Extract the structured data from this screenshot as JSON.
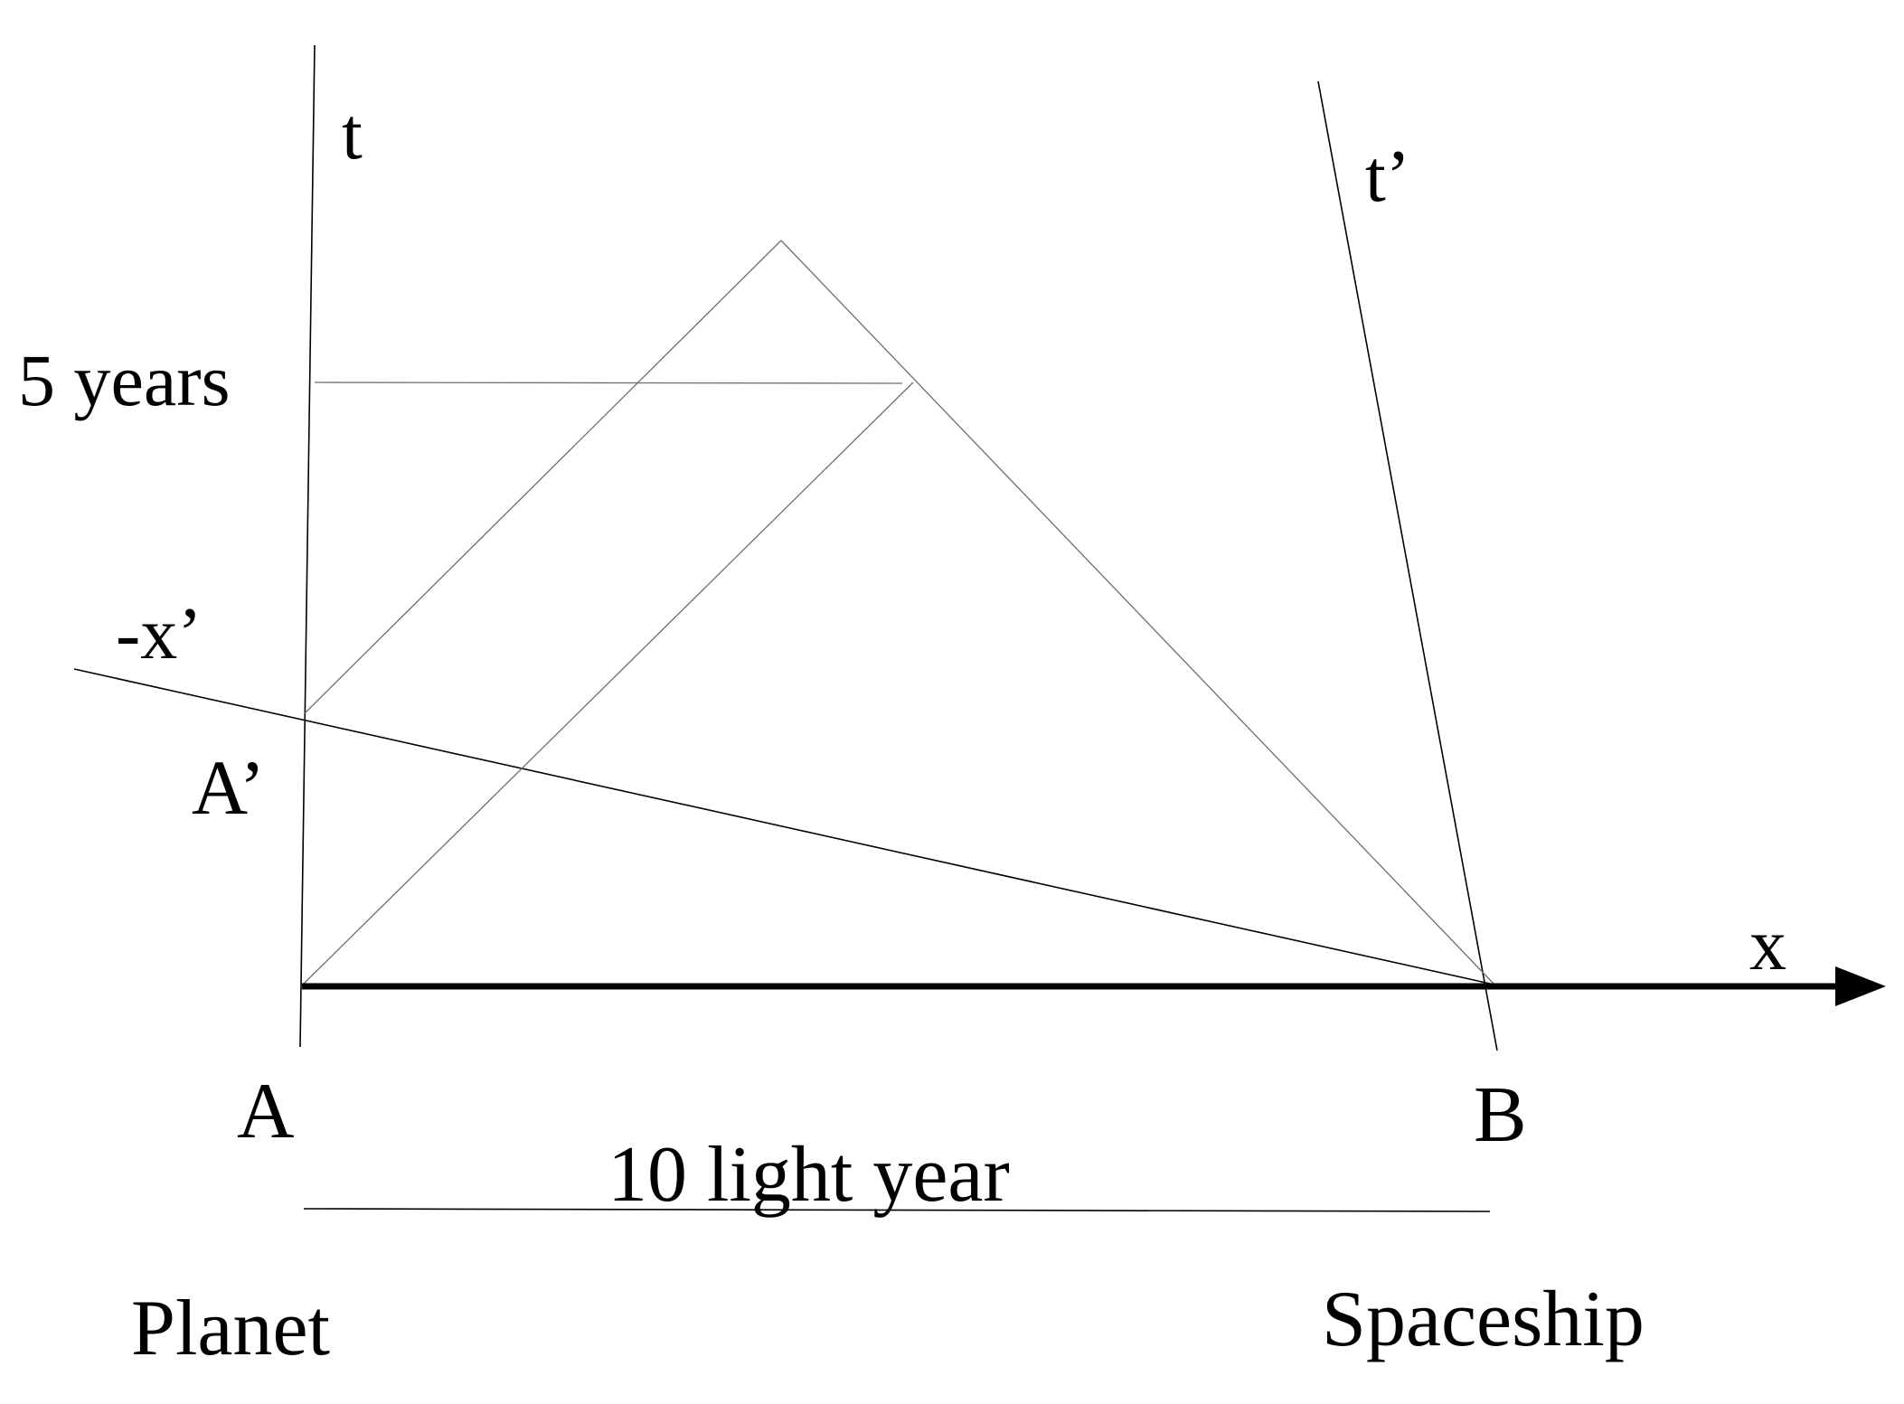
{
  "labels": {
    "t_axis": "t",
    "t_prime_axis": "t’",
    "x_axis": "x",
    "minus_x_prime_axis": "-x’",
    "five_years": "5 years",
    "point_a_prime": "A’",
    "point_a": "A",
    "point_b": "B",
    "distance": "10 light year",
    "planet": "Planet",
    "spaceship": "Spaceship"
  },
  "colors": {
    "ink": "#000000",
    "light_line": "#6e6e6e",
    "background": "#ffffff"
  }
}
